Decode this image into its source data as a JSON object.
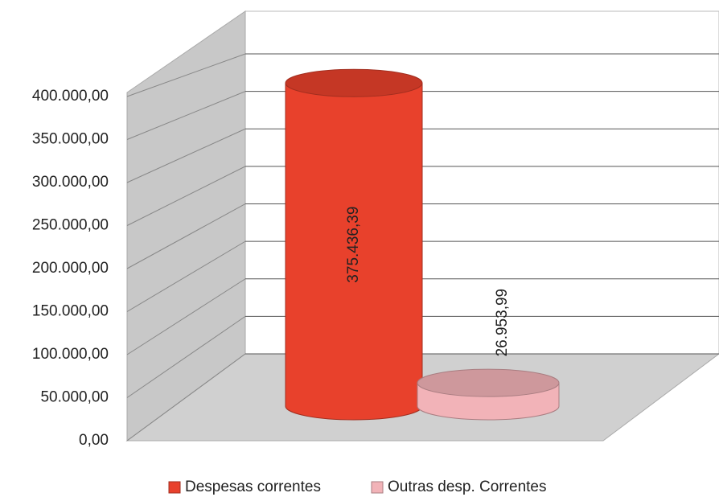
{
  "chart_data": {
    "type": "cylinder",
    "categories": [
      null
    ],
    "series": [
      {
        "name": "Despesas correntes",
        "color": "#e8412c",
        "values": [
          375436.39
        ],
        "value_labels": [
          "375.436,39"
        ]
      },
      {
        "name": "Outras desp. Correntes",
        "color": "#f2b3b8",
        "values": [
          26953.99
        ],
        "value_labels": [
          "26.953,99"
        ]
      }
    ],
    "ylim": [
      0,
      400000
    ],
    "yticks": [
      {
        "value": 0,
        "label": "0,00"
      },
      {
        "value": 50000,
        "label": "50.000,00"
      },
      {
        "value": 100000,
        "label": "100.000,00"
      },
      {
        "value": 150000,
        "label": "150.000,00"
      },
      {
        "value": 200000,
        "label": "200.000,00"
      },
      {
        "value": 250000,
        "label": "250.000,00"
      },
      {
        "value": 300000,
        "label": "300.000,00"
      },
      {
        "value": 350000,
        "label": "350.000,00"
      },
      {
        "value": 400000,
        "label": "400.000,00"
      }
    ],
    "grid": true,
    "legend": "bottom"
  }
}
